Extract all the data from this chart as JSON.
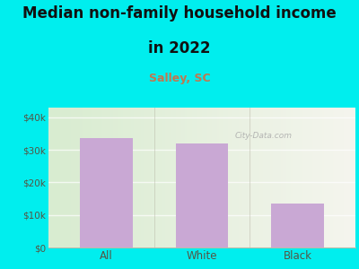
{
  "title_line1": "Median non-family household income",
  "title_line2": "in 2022",
  "subtitle": "Salley, SC",
  "categories": [
    "All",
    "White",
    "Black"
  ],
  "values": [
    33500,
    32000,
    13500
  ],
  "bar_color": "#c9a8d4",
  "title_fontsize": 12,
  "subtitle_fontsize": 9,
  "subtitle_color": "#c07850",
  "title_color": "#111111",
  "figure_bg": "#00eeee",
  "plot_bg_left": "#d8ecd0",
  "plot_bg_right": "#f5f5ee",
  "yticks": [
    0,
    10000,
    20000,
    30000,
    40000
  ],
  "ytick_labels": [
    "$0",
    "$10k",
    "$20k",
    "$30k",
    "$40k"
  ],
  "ylim": [
    0,
    43000
  ],
  "watermark": "City-Data.com",
  "tick_label_color": "#555544",
  "grid_color": "#ddddcc",
  "spine_color": "#bbbbaa",
  "bar_width": 0.55
}
